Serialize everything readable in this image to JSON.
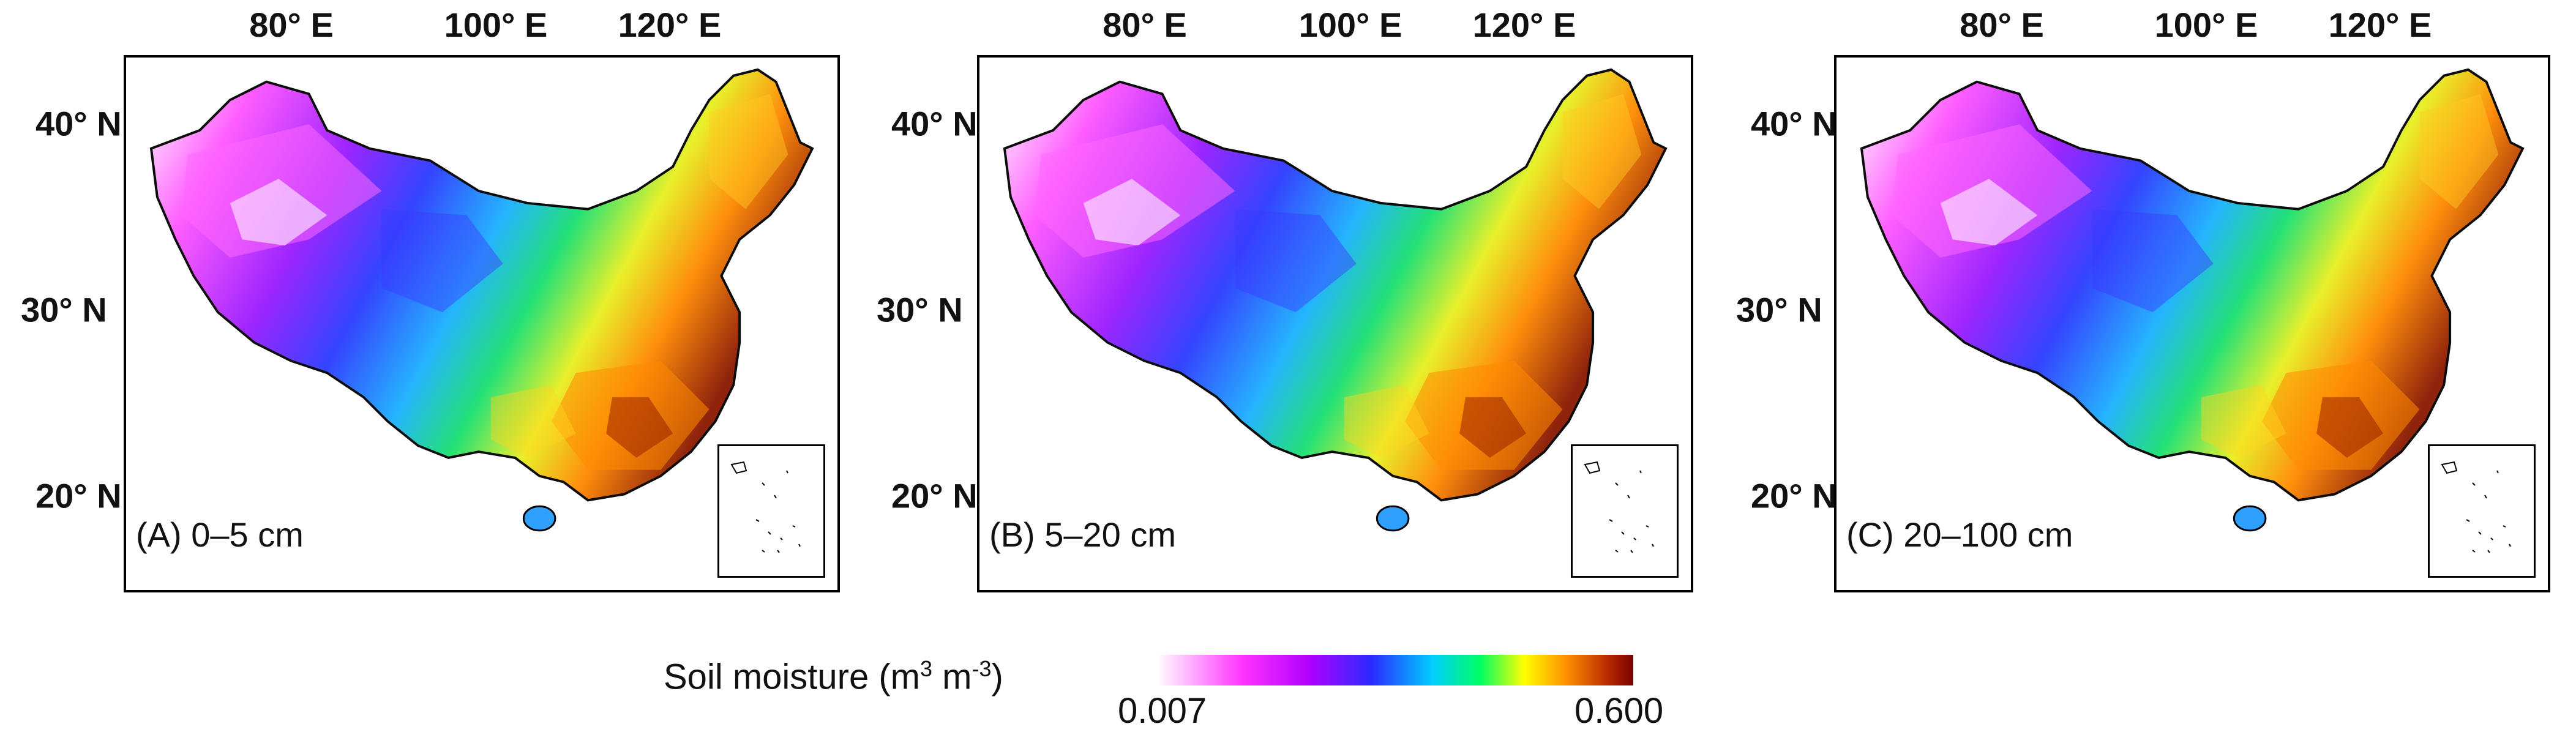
{
  "top_ticks": [
    "80° E",
    "100° E",
    "120° E"
  ],
  "left_ticks": [
    "40° N",
    "30° N",
    "20° N"
  ],
  "panels": [
    {
      "label": "(A) 0–5 cm"
    },
    {
      "label": "(B) 5–20 cm"
    },
    {
      "label": "(C) 20–100 cm"
    }
  ],
  "legend": {
    "title": "Soil moisture (m",
    "unit_exp1": "3",
    "unit_mid": " m",
    "unit_exp2": "-3",
    "unit_end": ")",
    "min": "0.007",
    "max": "0.600"
  },
  "colors": {
    "dry": "#ffffff",
    "low": "#ff33ff",
    "mid_low": "#2a2aff",
    "mid": "#00d0ff",
    "mid_high": "#00ff60",
    "high": "#ffff00",
    "very_high": "#ff9000",
    "wettest": "#7a0000"
  }
}
